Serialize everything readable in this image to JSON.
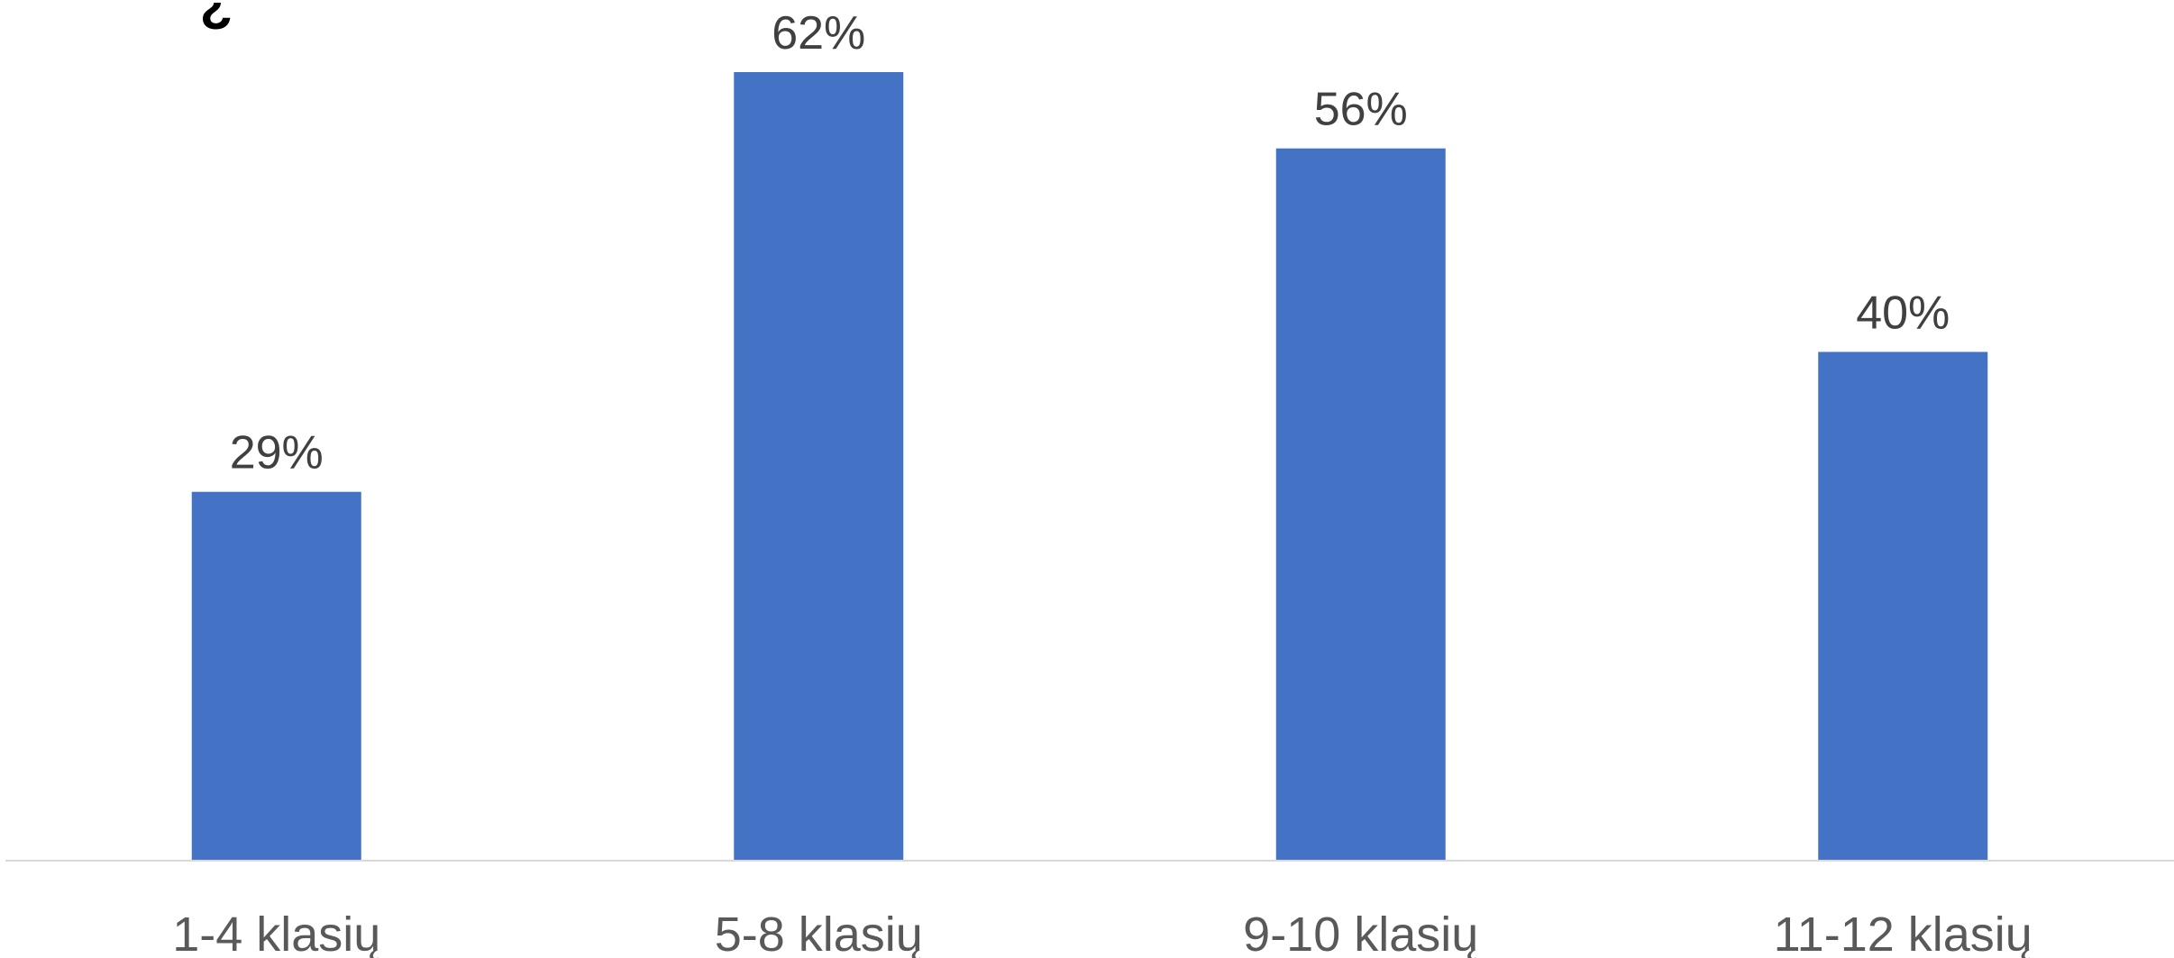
{
  "title_fragment": "¿",
  "chart_data": {
    "type": "bar",
    "categories": [
      "1-4 klasių",
      "5-8 klasių",
      "9-10 klasių",
      "11-12 klasių"
    ],
    "values": [
      29,
      62,
      56,
      40
    ],
    "value_labels": [
      "29%",
      "62%",
      "56%",
      "40%"
    ],
    "title": "",
    "xlabel": "",
    "ylabel": "",
    "ylim": [
      0,
      62
    ],
    "grid": false,
    "legend": "none",
    "colors": {
      "bar": "#4472C4",
      "axis": "#D9D9D9",
      "value_text": "#404040",
      "category_text": "#595959"
    }
  }
}
